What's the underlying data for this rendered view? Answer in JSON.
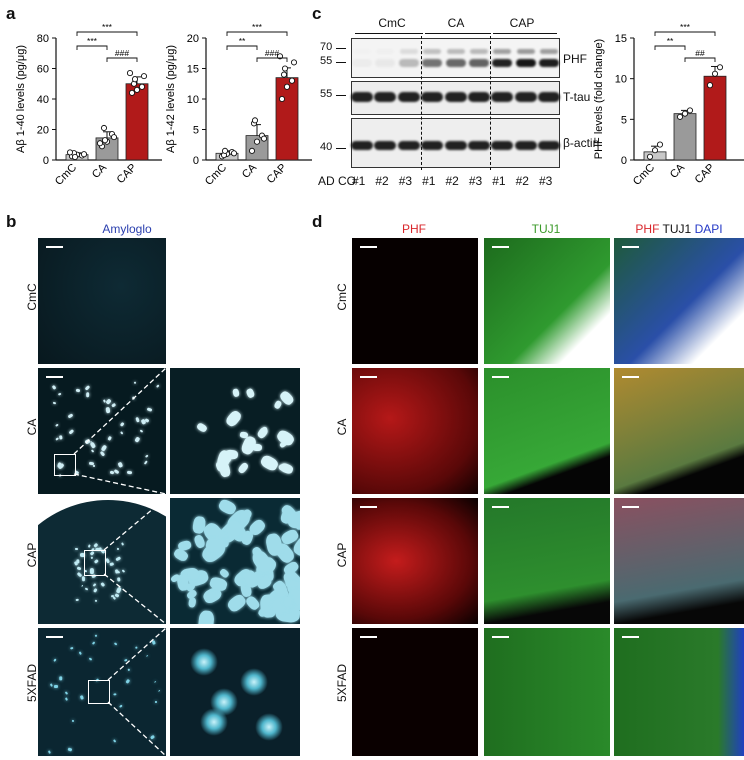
{
  "panel_labels": {
    "a": "a",
    "b": "b",
    "c": "c",
    "d": "d"
  },
  "chart_data": [
    {
      "type": "bar",
      "ylabel": "Aβ 1-40 levels (pg/μg)",
      "categories": [
        "CmC",
        "CA",
        "CAP"
      ],
      "values": [
        3.5,
        14.5,
        50
      ],
      "errors": [
        1.2,
        4,
        4.5
      ],
      "points": [
        [
          2.5,
          3.5,
          3,
          4.5,
          2,
          3.8,
          5
        ],
        [
          9,
          12,
          17,
          21,
          13,
          15,
          11
        ],
        [
          44,
          46,
          48,
          50,
          53,
          55,
          57
        ]
      ],
      "ylim": [
        0,
        80
      ],
      "yticks": [
        "0",
        "20",
        "40",
        "60",
        "80"
      ],
      "colors": [
        "#c8c8c8",
        "#9a9a9a",
        "#b11a1a"
      ],
      "significance": [
        {
          "text": "***",
          "pair": [
            1,
            3
          ]
        },
        {
          "text": "***",
          "pair": [
            1,
            2
          ]
        },
        {
          "text": "###",
          "pair": [
            2,
            3
          ]
        }
      ]
    },
    {
      "type": "bar",
      "ylabel": "Aβ 1-42 levels (pg/μg)",
      "categories": [
        "CmC",
        "CA",
        "CAP"
      ],
      "values": [
        1.1,
        4,
        13.5
      ],
      "errors": [
        0.4,
        1.8,
        1.6
      ],
      "points": [
        [
          0.6,
          1,
          1.3,
          0.8,
          1.5,
          1.1
        ],
        [
          1.5,
          3,
          4,
          6,
          6.5,
          3.5
        ],
        [
          10,
          12,
          13,
          14,
          15,
          16,
          17
        ]
      ],
      "ylim": [
        0,
        20
      ],
      "yticks": [
        "0",
        "5",
        "10",
        "15",
        "20"
      ],
      "colors": [
        "#c8c8c8",
        "#9a9a9a",
        "#b11a1a"
      ],
      "significance": [
        {
          "text": "***",
          "pair": [
            1,
            3
          ]
        },
        {
          "text": "**",
          "pair": [
            1,
            2
          ]
        },
        {
          "text": "###",
          "pair": [
            2,
            3
          ]
        }
      ]
    },
    {
      "type": "bar",
      "ylabel": "PHF levels (fold change)",
      "categories": [
        "CmC",
        "CA",
        "CAP"
      ],
      "values": [
        1,
        5.7,
        10.3
      ],
      "errors": [
        0.7,
        0.4,
        1.2
      ],
      "points": [
        [
          0.4,
          1.2,
          1.9
        ],
        [
          5.3,
          5.7,
          6.1
        ],
        [
          9.2,
          10.6,
          11.4
        ]
      ],
      "ylim": [
        0,
        15
      ],
      "yticks": [
        "0",
        "5",
        "10",
        "15"
      ],
      "colors": [
        "#c8c8c8",
        "#9a9a9a",
        "#b11a1a"
      ],
      "significance": [
        {
          "text": "***",
          "pair": [
            1,
            3
          ]
        },
        {
          "text": "**",
          "pair": [
            1,
            2
          ]
        },
        {
          "text": "##",
          "pair": [
            2,
            3
          ]
        }
      ]
    }
  ],
  "blot": {
    "groups": [
      "CmC",
      "CA",
      "CAP"
    ],
    "markers": [
      "70",
      "55",
      "55",
      "40"
    ],
    "bands": [
      "PHF",
      "T-tau",
      "β-actin"
    ],
    "lane_prefix": "AD CO",
    "lanes": [
      "#1",
      "#2",
      "#3",
      "#1",
      "#2",
      "#3",
      "#1",
      "#2",
      "#3"
    ],
    "phf_intensity": [
      0.03,
      0.05,
      0.25,
      0.55,
      0.6,
      0.62,
      0.9,
      0.95,
      0.92
    ]
  },
  "panel_b": {
    "stain": "Amyloglo",
    "stain_color": "#2a3fae",
    "rows": [
      "CmC",
      "CA",
      "CAP",
      "5XFAD"
    ]
  },
  "panel_d": {
    "columns": [
      {
        "label": "PHF",
        "color": "#d9262b"
      },
      {
        "label": "TUJ1",
        "color": "#3b9a2a"
      },
      {
        "merge": [
          {
            "label": "PHF",
            "color": "#d9262b"
          },
          {
            "label": "TUJ1",
            "color": "#111111"
          },
          {
            "label": "DAPI",
            "color": "#2438c6"
          }
        ]
      }
    ],
    "rows": [
      "CmC",
      "CA",
      "CAP",
      "5XFAD"
    ]
  }
}
